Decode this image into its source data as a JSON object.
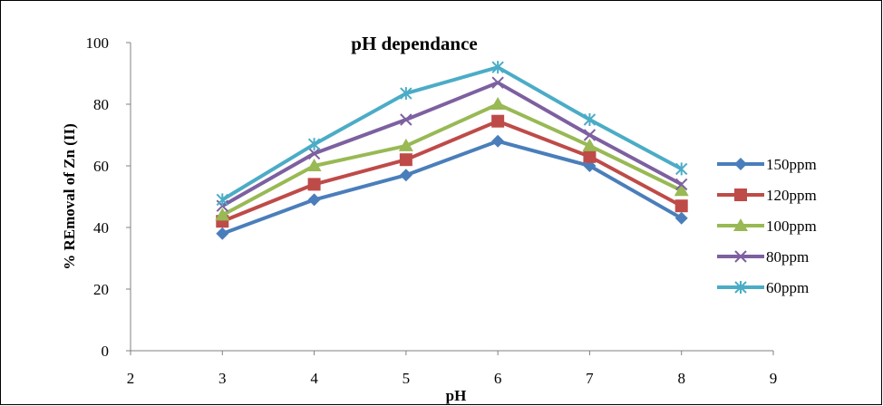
{
  "chart_data": {
    "type": "line",
    "title": "pH dependance",
    "xlabel": "pH",
    "ylabel": "% REmoval of Zn (II)",
    "xlim": [
      2,
      9
    ],
    "ylim": [
      0,
      100
    ],
    "x_ticks": [
      "2",
      "3",
      "4",
      "5",
      "6",
      "7",
      "8",
      "9"
    ],
    "y_ticks": [
      "0",
      "20",
      "40",
      "60",
      "80",
      "100"
    ],
    "x": [
      3,
      4,
      5,
      6,
      7,
      8
    ],
    "grid": false,
    "legend_position": "right",
    "series": [
      {
        "name": "150ppm",
        "values": [
          38,
          49,
          57,
          68,
          60,
          43
        ],
        "color": "#4a7ebb",
        "marker": "diamond"
      },
      {
        "name": "120ppm",
        "values": [
          42,
          54,
          62,
          74.5,
          63,
          47
        ],
        "color": "#be4b48",
        "marker": "square"
      },
      {
        "name": "100ppm",
        "values": [
          44,
          60,
          66.5,
          80,
          66.5,
          52
        ],
        "color": "#98b954",
        "marker": "triangle"
      },
      {
        "name": "80ppm",
        "values": [
          47,
          64,
          75,
          87,
          70,
          54
        ],
        "color": "#7d60a0",
        "marker": "x"
      },
      {
        "name": "60ppm",
        "values": [
          49,
          67,
          83.5,
          92,
          75,
          59
        ],
        "color": "#4bacc6",
        "marker": "asterisk"
      }
    ]
  }
}
